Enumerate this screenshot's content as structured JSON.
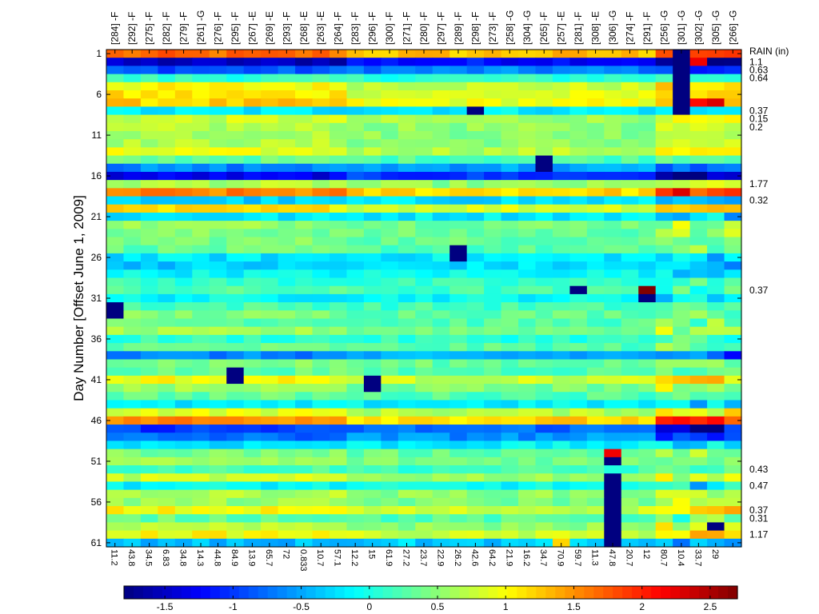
{
  "chart_data": {
    "type": "heatmap",
    "title": "",
    "ylabel": "Day Number [Offset June 1, 2009]",
    "xlabel": "",
    "rows": 61,
    "columns": [
      "[284] -F",
      "[292] -F",
      "[275] -F",
      "[282] -F",
      "[279] -F",
      "[261] -G",
      "[276] -F",
      "[295] -F",
      "[267] -E",
      "[269] -E",
      "[293] -F",
      "[268] -E",
      "[263] -E",
      "[264] -F",
      "[283] -F",
      "[296] -F",
      "[300] -F",
      "[271] -F",
      "[280] -F",
      "[297] -F",
      "[289] -F",
      "[298] -F",
      "[273] -F",
      "[258] -G",
      "[304] -G",
      "[265] -F",
      "[257] -E",
      "[281] -F",
      "[308] -E",
      "[306] -G",
      "[274] -F",
      "[291] -F",
      "[256] -G",
      "[301] -G",
      "[302] -G",
      "[305] -G",
      "[266] -G"
    ],
    "bottom_labels": [
      "11.2",
      "43.8",
      "34.5",
      "6.83",
      "34.8",
      "14.3",
      "44.8",
      "84.9",
      "13.9",
      "65.7",
      "72",
      "0.833",
      "10.7",
      "57.1",
      "12.2",
      "15",
      "61.9",
      "27.2",
      "23.7",
      "22.9",
      "26.2",
      "42.6",
      "64.2",
      "21.9",
      "16.2",
      "34.7",
      "70.9",
      "59.7",
      "11.3",
      "47.8",
      "20.7",
      "12",
      "80.7",
      "10.4",
      "33.7",
      "29",
      ""
    ],
    "yticks": [
      "1",
      "6",
      "11",
      "16",
      "21",
      "26",
      "31",
      "36",
      "41",
      "46",
      "51",
      "56",
      "61"
    ],
    "rain_header": "RAIN (in)",
    "rain": [
      {
        "day": 2,
        "value": "1.1"
      },
      {
        "day": 3,
        "value": "0.63"
      },
      {
        "day": 4,
        "value": "0.64"
      },
      {
        "day": 8,
        "value": "0.37"
      },
      {
        "day": 9,
        "value": "0.15"
      },
      {
        "day": 10,
        "value": "0.2"
      },
      {
        "day": 17,
        "value": "1.77"
      },
      {
        "day": 19,
        "value": "0.32"
      },
      {
        "day": 30,
        "value": "0.37"
      },
      {
        "day": 52,
        "value": "0.43"
      },
      {
        "day": 54,
        "value": "0.47"
      },
      {
        "day": 57,
        "value": "0.37"
      },
      {
        "day": 58,
        "value": "0.31"
      },
      {
        "day": 60,
        "value": "1.17"
      }
    ],
    "colorbar": {
      "min": -1.8,
      "max": 2.7,
      "ticks": [
        -1.5,
        -1,
        -0.5,
        0,
        0.5,
        1,
        1.5,
        2,
        2.5
      ],
      "tick_labels": [
        "-1.5",
        "-1",
        "-0.5",
        "0",
        "0.5",
        "1",
        "1.5",
        "2",
        "2.5"
      ],
      "colormap": "jet"
    },
    "row_profile": [
      1.5,
      -1.4,
      -0.8,
      0.1,
      0.9,
      1.0,
      1.1,
      -0.2,
      0.7,
      0.6,
      0.6,
      0.6,
      0.8,
      0.3,
      -0.6,
      -1.2,
      0.6,
      1.4,
      -0.3,
      1.0,
      -0.2,
      0.5,
      0.4,
      0.4,
      0.3,
      -0.2,
      -0.3,
      -0.1,
      0.1,
      0.2,
      -0.1,
      0.2,
      0.4,
      0.3,
      0.5,
      0.1,
      0.3,
      -0.6,
      0.4,
      0.3,
      0.9,
      0.5,
      0.3,
      -0.2,
      0.8,
      1.4,
      -0.9,
      -0.7,
      -0.2,
      0.4,
      0.5,
      0.2,
      0.7,
      -0.1,
      0.6,
      0.5,
      0.9,
      0.3,
      0.6,
      0.9,
      -0.4
    ],
    "special_cells": [
      {
        "row": 1,
        "col": 33,
        "value": -1.8
      },
      {
        "row": 2,
        "col": 33,
        "value": -1.8
      },
      {
        "row": 3,
        "col": 33,
        "value": -1.8
      },
      {
        "row": 4,
        "col": 33,
        "value": -1.8
      },
      {
        "row": 5,
        "col": 33,
        "value": -1.8
      },
      {
        "row": 6,
        "col": 33,
        "value": -1.8
      },
      {
        "row": 7,
        "col": 33,
        "value": -1.8
      },
      {
        "row": 8,
        "col": 33,
        "value": -1.8
      },
      {
        "row": 8,
        "col": 21,
        "value": -1.8
      },
      {
        "row": 14,
        "col": 25,
        "value": -1.8
      },
      {
        "row": 15,
        "col": 25,
        "value": -1.8
      },
      {
        "row": 25,
        "col": 20,
        "value": -1.8
      },
      {
        "row": 26,
        "col": 20,
        "value": -1.8
      },
      {
        "row": 30,
        "col": 27,
        "value": -1.8
      },
      {
        "row": 31,
        "col": 31,
        "value": -1.8
      },
      {
        "row": 30,
        "col": 31,
        "value": 2.7
      },
      {
        "row": 32,
        "col": 0,
        "value": -1.8
      },
      {
        "row": 33,
        "col": 0,
        "value": -1.8
      },
      {
        "row": 40,
        "col": 7,
        "value": -1.8
      },
      {
        "row": 41,
        "col": 7,
        "value": -1.8
      },
      {
        "row": 41,
        "col": 15,
        "value": -1.8
      },
      {
        "row": 42,
        "col": 15,
        "value": -1.8
      },
      {
        "row": 50,
        "col": 29,
        "value": 2.2
      },
      {
        "row": 51,
        "col": 29,
        "value": -1.8
      },
      {
        "row": 47,
        "col": 34,
        "value": -1.8
      },
      {
        "row": 47,
        "col": 35,
        "value": -1.8
      },
      {
        "row": 53,
        "col": 29,
        "value": -1.8
      },
      {
        "row": 54,
        "col": 29,
        "value": -1.8
      },
      {
        "row": 55,
        "col": 29,
        "value": -1.8
      },
      {
        "row": 56,
        "col": 29,
        "value": -1.8
      },
      {
        "row": 57,
        "col": 29,
        "value": -1.8
      },
      {
        "row": 58,
        "col": 29,
        "value": -1.8
      },
      {
        "row": 59,
        "col": 29,
        "value": -1.8
      },
      {
        "row": 60,
        "col": 29,
        "value": -1.8
      },
      {
        "row": 61,
        "col": 29,
        "value": -1.8
      },
      {
        "row": 59,
        "col": 35,
        "value": -1.8
      },
      {
        "row": 61,
        "col": 26,
        "value": 1.2
      },
      {
        "row": 7,
        "col": 35,
        "value": 2.3
      },
      {
        "row": 7,
        "col": 34,
        "value": 2.1
      },
      {
        "row": 16,
        "col": 33,
        "value": -1.8
      },
      {
        "row": 16,
        "col": 34,
        "value": -1.8
      },
      {
        "row": 18,
        "col": 33,
        "value": 2.3
      },
      {
        "row": 46,
        "col": 33,
        "value": 2.1
      },
      {
        "row": 2,
        "col": 34,
        "value": 2.2
      }
    ]
  }
}
